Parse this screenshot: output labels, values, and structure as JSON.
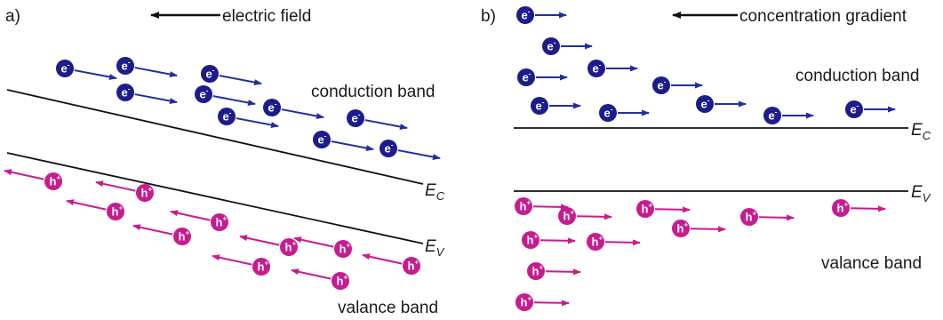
{
  "panel_a": {
    "label": "a)",
    "field_label": "electric field",
    "conduction_label": "conduction band",
    "valance_label": "valance band",
    "ec_main": "E",
    "ec_sub": "C",
    "ev_main": "E",
    "ev_sub": "V"
  },
  "panel_b": {
    "label": "b)",
    "gradient_label": "concentration gradient",
    "conduction_label": "conduction band",
    "valance_label": "valance band",
    "ec_main": "E",
    "ec_sub": "C",
    "ev_main": "E",
    "ev_sub": "V"
  },
  "particles": {
    "electron_letter": "e",
    "electron_sign": "-",
    "hole_letter": "h",
    "hole_sign": "+"
  },
  "colors": {
    "electron": "#1c1c8c",
    "electron_arrow": "#1f2fa0",
    "hole": "#c71b8e",
    "hole_arrow": "#c71b8e",
    "line": "#111111"
  }
}
